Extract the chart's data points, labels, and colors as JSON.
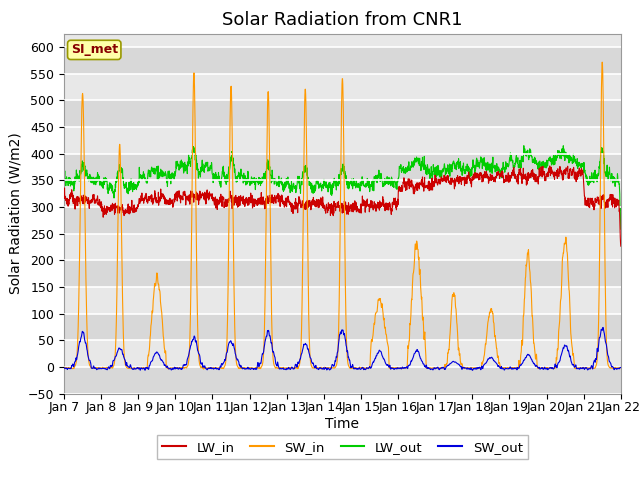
{
  "title": "Solar Radiation from CNR1",
  "xlabel": "Time",
  "ylabel": "Solar Radiation (W/m2)",
  "ylim": [
    -50,
    625
  ],
  "yticks": [
    -50,
    0,
    50,
    100,
    150,
    200,
    250,
    300,
    350,
    400,
    450,
    500,
    550,
    600
  ],
  "colors": {
    "LW_in": "#cc0000",
    "SW_in": "#ff9900",
    "LW_out": "#00cc00",
    "SW_out": "#0000dd"
  },
  "annotation_text": "SI_met",
  "annotation_color": "#880000",
  "annotation_bg": "#ffffaa",
  "plot_bg": "#e8e8e8",
  "title_fontsize": 13,
  "axis_label_fontsize": 10,
  "tick_label_fontsize": 9,
  "xtick_labels": [
    "Jan 7",
    "Jan 8",
    "Jan 9",
    "Jan 10",
    "Jan 11",
    "Jan 12",
    "Jan 13",
    "Jan 14",
    "Jan 15",
    "Jan 16",
    "Jan 17",
    "Jan 18",
    "Jan 19",
    "Jan 20",
    "Jan 21",
    "Jan 22"
  ]
}
